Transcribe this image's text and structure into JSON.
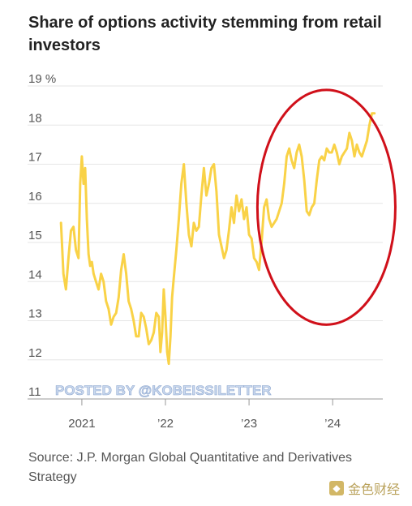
{
  "title": "Share of options activity stemming from retail investors",
  "source": "Source: J.P. Morgan Global Quantitative and Derivatives Strategy",
  "watermark": "POSTED BY @KOBEISSILETTER",
  "logo": {
    "icon": "logo-mark-icon",
    "text": "金色财经"
  },
  "colors": {
    "line": "#f9d247",
    "highlight_circle": "#d0101a",
    "grid": "#e6e6e6"
  },
  "chart_data": {
    "type": "line",
    "title": "Share of options activity stemming from retail investors",
    "xlabel": "",
    "ylabel": "",
    "ylim": [
      11,
      19
    ],
    "xlim": [
      2020.7,
      2024.6
    ],
    "y_ticks": [
      {
        "value": 19,
        "label": "19 %"
      },
      {
        "value": 18,
        "label": "18"
      },
      {
        "value": 17,
        "label": "17"
      },
      {
        "value": 16,
        "label": "16"
      },
      {
        "value": 15,
        "label": "15"
      },
      {
        "value": 14,
        "label": "14"
      },
      {
        "value": 13,
        "label": "13"
      },
      {
        "value": 12,
        "label": "12"
      },
      {
        "value": 11,
        "label": "11"
      }
    ],
    "x_ticks": [
      {
        "value": 2021.0,
        "label": "2021"
      },
      {
        "value": 2022.0,
        "label": "’22"
      },
      {
        "value": 2023.0,
        "label": "’23"
      },
      {
        "value": 2024.0,
        "label": "’24"
      }
    ],
    "grid": "horizontal",
    "annotation": "red ellipse highlighting 2023–2024 rise",
    "highlight_range": {
      "x": [
        2023.1,
        2024.75
      ],
      "y": [
        12.9,
        18.9
      ]
    },
    "series": [
      {
        "values": [
          [
            2020.75,
            15.5
          ],
          [
            2020.78,
            14.2
          ],
          [
            2020.81,
            13.8
          ],
          [
            2020.84,
            14.6
          ],
          [
            2020.87,
            15.3
          ],
          [
            2020.9,
            15.4
          ],
          [
            2020.93,
            14.8
          ],
          [
            2020.96,
            14.6
          ],
          [
            2020.98,
            16.5
          ],
          [
            2021.0,
            17.2
          ],
          [
            2021.02,
            16.5
          ],
          [
            2021.04,
            16.9
          ],
          [
            2021.06,
            15.6
          ],
          [
            2021.08,
            14.7
          ],
          [
            2021.1,
            14.4
          ],
          [
            2021.12,
            14.5
          ],
          [
            2021.14,
            14.2
          ],
          [
            2021.17,
            14.0
          ],
          [
            2021.2,
            13.8
          ],
          [
            2021.23,
            14.2
          ],
          [
            2021.26,
            14.0
          ],
          [
            2021.29,
            13.5
          ],
          [
            2021.32,
            13.3
          ],
          [
            2021.35,
            12.9
          ],
          [
            2021.38,
            13.1
          ],
          [
            2021.41,
            13.2
          ],
          [
            2021.44,
            13.6
          ],
          [
            2021.47,
            14.3
          ],
          [
            2021.5,
            14.7
          ],
          [
            2021.53,
            14.2
          ],
          [
            2021.56,
            13.5
          ],
          [
            2021.59,
            13.3
          ],
          [
            2021.62,
            13.0
          ],
          [
            2021.65,
            12.6
          ],
          [
            2021.68,
            12.6
          ],
          [
            2021.71,
            13.2
          ],
          [
            2021.74,
            13.1
          ],
          [
            2021.77,
            12.8
          ],
          [
            2021.8,
            12.4
          ],
          [
            2021.83,
            12.5
          ],
          [
            2021.86,
            12.7
          ],
          [
            2021.89,
            13.2
          ],
          [
            2021.92,
            13.1
          ],
          [
            2021.94,
            12.2
          ],
          [
            2021.96,
            12.7
          ],
          [
            2021.98,
            13.8
          ],
          [
            2022.0,
            13.1
          ],
          [
            2022.02,
            12.2
          ],
          [
            2022.04,
            11.9
          ],
          [
            2022.06,
            12.6
          ],
          [
            2022.08,
            13.6
          ],
          [
            2022.1,
            14.1
          ],
          [
            2022.13,
            14.8
          ],
          [
            2022.16,
            15.6
          ],
          [
            2022.19,
            16.5
          ],
          [
            2022.22,
            17.0
          ],
          [
            2022.25,
            16.0
          ],
          [
            2022.28,
            15.2
          ],
          [
            2022.31,
            14.9
          ],
          [
            2022.34,
            15.5
          ],
          [
            2022.37,
            15.3
          ],
          [
            2022.4,
            15.4
          ],
          [
            2022.43,
            16.2
          ],
          [
            2022.46,
            16.9
          ],
          [
            2022.49,
            16.2
          ],
          [
            2022.52,
            16.5
          ],
          [
            2022.55,
            16.9
          ],
          [
            2022.58,
            17.0
          ],
          [
            2022.61,
            16.3
          ],
          [
            2022.64,
            15.2
          ],
          [
            2022.67,
            14.9
          ],
          [
            2022.7,
            14.6
          ],
          [
            2022.73,
            14.8
          ],
          [
            2022.76,
            15.3
          ],
          [
            2022.79,
            15.9
          ],
          [
            2022.82,
            15.5
          ],
          [
            2022.85,
            16.2
          ],
          [
            2022.88,
            15.8
          ],
          [
            2022.91,
            16.1
          ],
          [
            2022.94,
            15.6
          ],
          [
            2022.97,
            15.9
          ],
          [
            2023.0,
            15.2
          ],
          [
            2023.03,
            15.1
          ],
          [
            2023.06,
            14.6
          ],
          [
            2023.09,
            14.5
          ],
          [
            2023.12,
            14.3
          ],
          [
            2023.15,
            15.0
          ],
          [
            2023.18,
            15.9
          ],
          [
            2023.21,
            16.1
          ],
          [
            2023.24,
            15.6
          ],
          [
            2023.27,
            15.4
          ],
          [
            2023.3,
            15.5
          ],
          [
            2023.33,
            15.6
          ],
          [
            2023.36,
            15.8
          ],
          [
            2023.39,
            16.0
          ],
          [
            2023.42,
            16.5
          ],
          [
            2023.45,
            17.2
          ],
          [
            2023.48,
            17.4
          ],
          [
            2023.51,
            17.1
          ],
          [
            2023.54,
            16.9
          ],
          [
            2023.57,
            17.3
          ],
          [
            2023.6,
            17.5
          ],
          [
            2023.63,
            17.2
          ],
          [
            2023.66,
            16.6
          ],
          [
            2023.69,
            15.8
          ],
          [
            2023.72,
            15.7
          ],
          [
            2023.75,
            15.9
          ],
          [
            2023.78,
            16.0
          ],
          [
            2023.81,
            16.6
          ],
          [
            2023.84,
            17.1
          ],
          [
            2023.87,
            17.2
          ],
          [
            2023.9,
            17.1
          ],
          [
            2023.93,
            17.4
          ],
          [
            2023.96,
            17.3
          ],
          [
            2023.99,
            17.3
          ],
          [
            2024.02,
            17.5
          ],
          [
            2024.05,
            17.3
          ],
          [
            2024.08,
            17.0
          ],
          [
            2024.11,
            17.2
          ],
          [
            2024.14,
            17.3
          ],
          [
            2024.17,
            17.4
          ],
          [
            2024.2,
            17.8
          ],
          [
            2024.23,
            17.6
          ],
          [
            2024.26,
            17.2
          ],
          [
            2024.29,
            17.5
          ],
          [
            2024.32,
            17.3
          ],
          [
            2024.35,
            17.2
          ],
          [
            2024.38,
            17.4
          ],
          [
            2024.41,
            17.6
          ],
          [
            2024.44,
            18.0
          ],
          [
            2024.47,
            18.3
          ],
          [
            2024.5,
            18.3
          ]
        ]
      }
    ]
  }
}
